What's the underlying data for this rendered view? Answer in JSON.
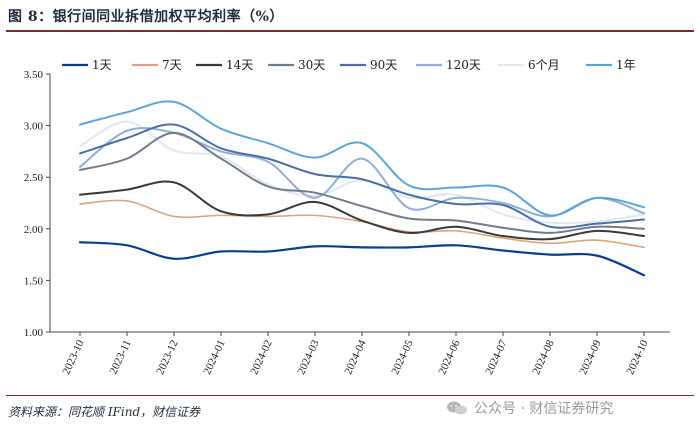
{
  "figure": {
    "title": "图 8：银行间同业拆借加权平均利率（%）",
    "source": "资料来源：同花顺 IFind，财信证券",
    "watermark": "公众号 · 财信证券研究"
  },
  "chart_data": {
    "type": "line",
    "title": "银行间同业拆借加权平均利率（%）",
    "xlabel": "",
    "ylabel": "%",
    "ylim": [
      1.0,
      3.5
    ],
    "yticks": [
      "1.00",
      "1.50",
      "2.00",
      "2.50",
      "3.00",
      "3.50"
    ],
    "ytick_values": [
      1.0,
      1.5,
      2.0,
      2.5,
      3.0,
      3.5
    ],
    "x": [
      "2023-10",
      "2023-11",
      "2023-12",
      "2024-01",
      "2024-02",
      "2024-03",
      "2024-04",
      "2024-05",
      "2024-06",
      "2024-07",
      "2024-08",
      "2024-09",
      "2024-10"
    ],
    "grid": false,
    "legend_position": "top",
    "series": [
      {
        "name": "1天",
        "color": "#0b3d91",
        "width": 2.2,
        "values": [
          1.87,
          1.84,
          1.71,
          1.78,
          1.78,
          1.83,
          1.82,
          1.82,
          1.84,
          1.79,
          1.75,
          1.74,
          1.55
        ]
      },
      {
        "name": "7天",
        "color": "#dda57e",
        "width": 1.6,
        "values": [
          2.24,
          2.27,
          2.12,
          2.13,
          2.12,
          2.13,
          2.07,
          1.97,
          1.98,
          1.91,
          1.86,
          1.89,
          1.82
        ]
      },
      {
        "name": "14天",
        "color": "#3a3a3a",
        "width": 2.0,
        "values": [
          2.33,
          2.38,
          2.45,
          2.17,
          2.14,
          2.26,
          2.08,
          1.96,
          2.02,
          1.93,
          1.9,
          1.98,
          1.93
        ]
      },
      {
        "name": "30天",
        "color": "#717c8c",
        "width": 2.0,
        "values": [
          2.57,
          2.68,
          2.93,
          2.68,
          2.41,
          2.35,
          2.22,
          2.1,
          2.08,
          2.01,
          1.96,
          2.02,
          2.0
        ]
      },
      {
        "name": "90天",
        "color": "#4a6ea8",
        "width": 2.0,
        "values": [
          2.73,
          2.88,
          3.01,
          2.78,
          2.68,
          2.53,
          2.48,
          2.33,
          2.24,
          2.23,
          2.02,
          2.05,
          2.09
        ]
      },
      {
        "name": "120天",
        "color": "#8faed8",
        "width": 2.0,
        "values": [
          2.6,
          2.95,
          2.93,
          2.75,
          2.65,
          2.3,
          2.68,
          2.2,
          2.3,
          2.25,
          2.12,
          2.3,
          2.15
        ]
      },
      {
        "name": "6个月",
        "color": "#dfe7f1",
        "width": 2.0,
        "values": [
          2.8,
          3.04,
          2.76,
          2.7,
          2.43,
          2.32,
          2.47,
          2.3,
          2.33,
          2.14,
          2.06,
          2.07,
          2.14
        ]
      },
      {
        "name": "1年",
        "color": "#5ba6d6",
        "width": 2.0,
        "values": [
          3.01,
          3.13,
          3.23,
          2.97,
          2.83,
          2.69,
          2.83,
          2.42,
          2.4,
          2.4,
          2.13,
          2.3,
          2.21
        ]
      }
    ]
  }
}
